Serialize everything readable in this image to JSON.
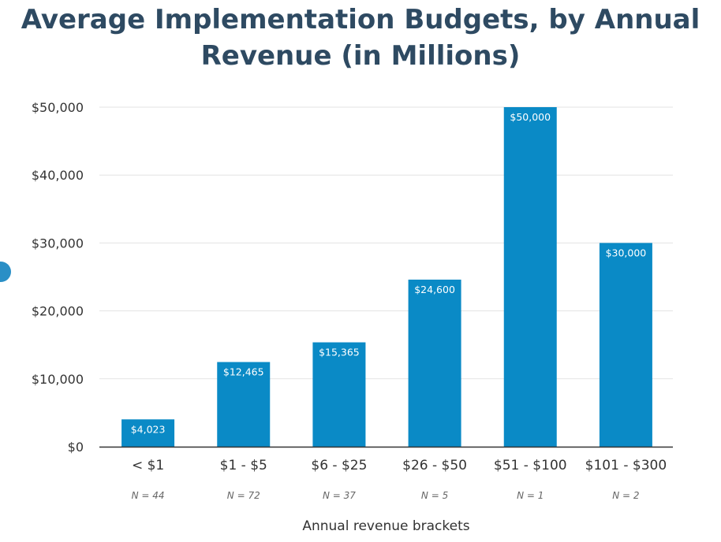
{
  "chart_data": {
    "type": "bar",
    "title_lines": [
      "Average Implementation Budgets, by Annual",
      "Revenue (in Millions)"
    ],
    "xlabel": "Annual revenue brackets",
    "ylabel": "",
    "categories": [
      "< $1",
      "$1 - $5",
      "$6 - $25",
      "$26 - $50",
      "$51 - $100",
      "$101 - $300"
    ],
    "values": [
      4023,
      12465,
      15365,
      24600,
      50000,
      30000
    ],
    "value_labels": [
      "$4,023",
      "$12,465",
      "$15,365",
      "$24,600",
      "$50,000",
      "$30,000"
    ],
    "sample_sizes": [
      "N = 44",
      "N = 72",
      "N = 37",
      "N = 5",
      "N = 1",
      "N = 2"
    ],
    "ylim": [
      0,
      50000
    ],
    "yticks": [
      0,
      10000,
      20000,
      30000,
      40000,
      50000
    ],
    "ytick_labels": [
      "$0",
      "$10,000",
      "$20,000",
      "$30,000",
      "$40,000",
      "$50,000"
    ],
    "grid": true,
    "legend": "none",
    "colors": {
      "bar": "#0a8ac6",
      "title": "#2e4a62",
      "grid": "#e3e3e3",
      "axis": "#333333",
      "text": "#333333",
      "bar_label": "#ffffff",
      "n_label": "#666666"
    }
  }
}
